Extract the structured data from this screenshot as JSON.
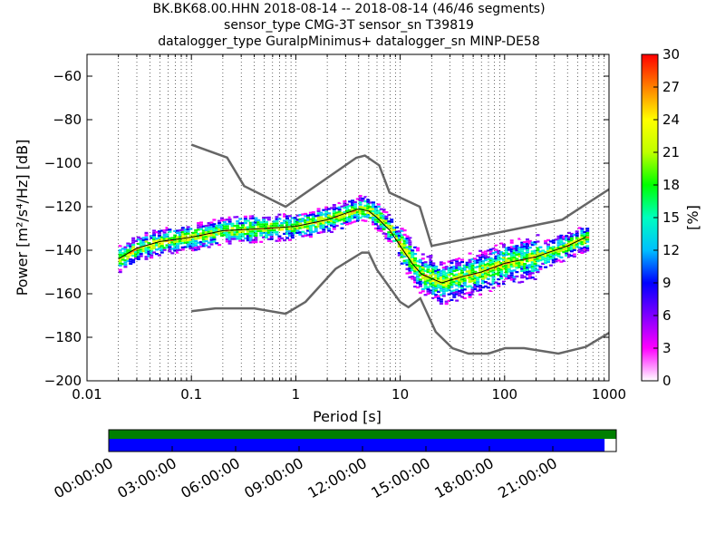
{
  "title_lines": [
    "BK.BK68.00.HHN   2018-08-14 -- 2018-08-14  (46/46 segments)",
    "sensor_type CMG-3T sensor_sn T39819",
    "datalogger_type GuralpMinimus+ datalogger_sn MINP-DE58"
  ],
  "chart_data": {
    "type": "heatmap",
    "xlabel": "Period [s]",
    "ylabel": "Power [m²/s⁴/Hz] [dB]",
    "x_scale": "log",
    "xlim": [
      0.01,
      1000
    ],
    "ylim": [
      -200,
      -50
    ],
    "x_tick_labels": [
      "0.01",
      "0.1",
      "1",
      "10",
      "100",
      "1000"
    ],
    "y_ticks": [
      -200,
      -180,
      -160,
      -140,
      -120,
      -100,
      -80,
      -60
    ],
    "colorbar": {
      "label": "[%]",
      "range": [
        0,
        30
      ],
      "ticks": [
        0,
        3,
        6,
        9,
        12,
        15,
        18,
        21,
        24,
        27,
        30
      ],
      "colors": [
        "#ffffff",
        "#ff00ff",
        "#7f00ff",
        "#0000ff",
        "#00bfff",
        "#00ffbf",
        "#00ff00",
        "#bfff00",
        "#ffff00",
        "#ff8000",
        "#ff0000"
      ]
    },
    "series": [
      {
        "role": "NHNM",
        "color": "#666666",
        "points": [
          [
            0.1,
            -91.5
          ],
          [
            0.22,
            -97.4
          ],
          [
            0.32,
            -110.5
          ],
          [
            0.8,
            -120
          ],
          [
            3.8,
            -97.5
          ],
          [
            4.6,
            -96.5
          ],
          [
            6.3,
            -101
          ],
          [
            7.9,
            -113.5
          ],
          [
            15.4,
            -120
          ],
          [
            20,
            -138
          ],
          [
            354.8,
            -126
          ],
          [
            1000,
            -112
          ]
        ]
      },
      {
        "role": "NLNM",
        "color": "#666666",
        "points": [
          [
            0.1,
            -168
          ],
          [
            0.17,
            -166.7
          ],
          [
            0.4,
            -166.7
          ],
          [
            0.8,
            -169.2
          ],
          [
            1.24,
            -163.7
          ],
          [
            2.4,
            -148.6
          ],
          [
            4.3,
            -141.1
          ],
          [
            5,
            -141.1
          ],
          [
            6,
            -149
          ],
          [
            10,
            -163.8
          ],
          [
            12,
            -166.2
          ],
          [
            15.6,
            -162.1
          ],
          [
            21.9,
            -177.5
          ],
          [
            31.6,
            -185
          ],
          [
            45,
            -187.5
          ],
          [
            70,
            -187.5
          ],
          [
            101,
            -185
          ],
          [
            154,
            -185
          ],
          [
            328,
            -187.5
          ],
          [
            600,
            -184.4
          ],
          [
            1000,
            -178
          ]
        ]
      }
    ],
    "mode_line": [
      [
        0.02,
        -144
      ],
      [
        0.03,
        -139
      ],
      [
        0.05,
        -136
      ],
      [
        0.1,
        -134
      ],
      [
        0.2,
        -131
      ],
      [
        0.5,
        -130
      ],
      [
        1,
        -129
      ],
      [
        2,
        -126
      ],
      [
        3,
        -123
      ],
      [
        4,
        -121
      ],
      [
        5,
        -122
      ],
      [
        6,
        -125
      ],
      [
        8,
        -131
      ],
      [
        10,
        -138
      ],
      [
        13,
        -146
      ],
      [
        16,
        -151
      ],
      [
        25,
        -155
      ],
      [
        40,
        -152
      ],
      [
        60,
        -150
      ],
      [
        100,
        -146
      ],
      [
        200,
        -143
      ],
      [
        400,
        -138
      ],
      [
        600,
        -134
      ]
    ],
    "timeline": {
      "tick_labels": [
        "00:00:00",
        "03:00:00",
        "06:00:00",
        "09:00:00",
        "12:00:00",
        "15:00:00",
        "18:00:00",
        "21:00:00"
      ],
      "coverage_fraction": 0.977,
      "top_bar_color": "#007f00",
      "bottom_bar_color": "#0000ff"
    }
  }
}
